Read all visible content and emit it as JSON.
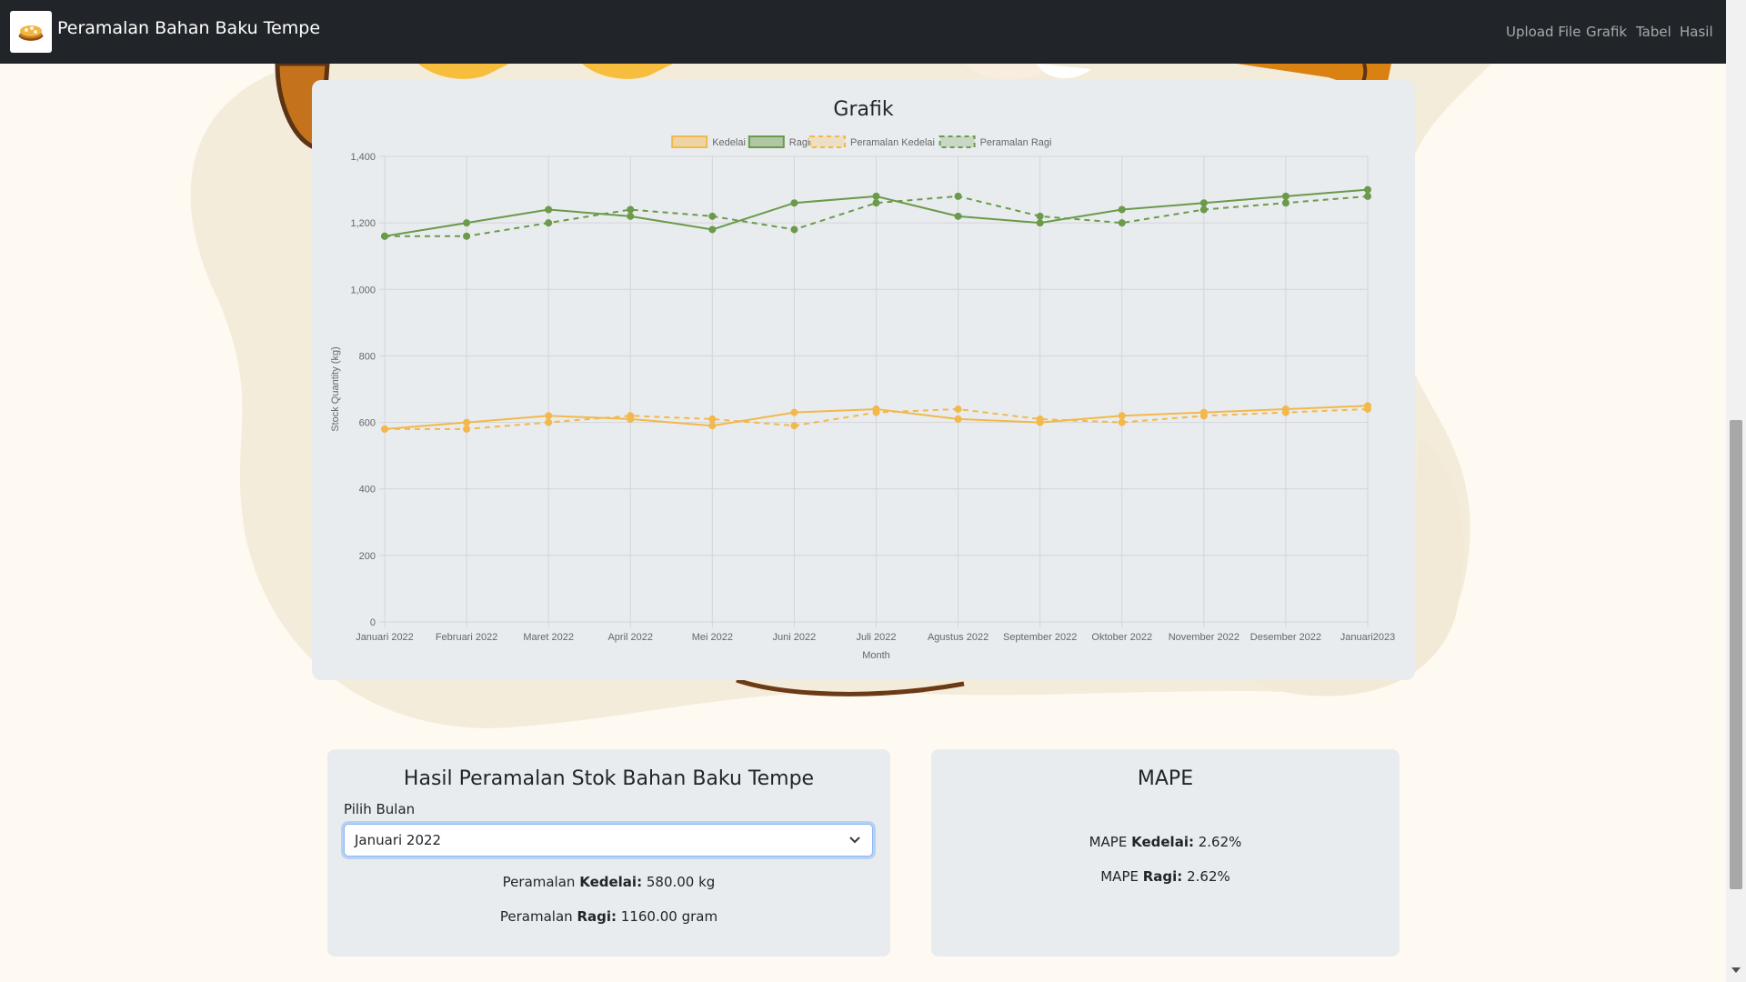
{
  "navbar": {
    "brand": "Peramalan Bahan Baku Tempe",
    "links": [
      "Upload File",
      "Grafik",
      "Tabel",
      "Hasil"
    ]
  },
  "colors": {
    "navbar_bg": "#212529",
    "page_bg": "#fefaf1",
    "card_bg": "#e9ecef",
    "kedelai": "#f2b84b",
    "ragi": "#6a9a4a",
    "blob": "#f4ecdb"
  },
  "chart_section": {
    "title": "Grafik"
  },
  "chart_data": {
    "type": "line",
    "categories": [
      "Januari 2022",
      "Februari 2022",
      "Maret 2022",
      "April 2022",
      "Mei 2022",
      "Juni 2022",
      "Juli 2022",
      "Agustus 2022",
      "September 2022",
      "Oktober 2022",
      "November 2022",
      "Desember 2022",
      "Januari2023"
    ],
    "series": [
      {
        "name": "Kedelai",
        "color": "#f2b84b",
        "dashed": false,
        "values": [
          580,
          600,
          620,
          610,
          590,
          630,
          640,
          610,
          600,
          620,
          630,
          640,
          650
        ]
      },
      {
        "name": "Ragi",
        "color": "#6a9a4a",
        "dashed": false,
        "values": [
          1160,
          1200,
          1240,
          1220,
          1180,
          1260,
          1280,
          1220,
          1200,
          1240,
          1260,
          1280,
          1300
        ]
      },
      {
        "name": "Peramalan Kedelai",
        "color": "#f2b84b",
        "dashed": true,
        "values": [
          580,
          580,
          600,
          620,
          610,
          590,
          630,
          640,
          610,
          600,
          620,
          630,
          640
        ]
      },
      {
        "name": "Peramalan Ragi",
        "color": "#6a9a4a",
        "dashed": true,
        "values": [
          1160,
          1160,
          1200,
          1240,
          1220,
          1180,
          1260,
          1280,
          1220,
          1200,
          1240,
          1260,
          1280
        ]
      }
    ],
    "xlabel": "Month",
    "ylabel": "Stock Quantity (kg)",
    "ylim": [
      0,
      1400
    ],
    "yticks": [
      "0",
      "200",
      "400",
      "600",
      "800",
      "1,000",
      "1,200",
      "1,400"
    ],
    "grid": true,
    "legend": "top-center"
  },
  "result_card": {
    "title": "Hasil Peramalan Stok Bahan Baku Tempe",
    "select_label": "Pilih Bulan",
    "selected_month": "Januari 2022",
    "kedelai_prefix": "Peramalan",
    "kedelai_label": "Kedelai:",
    "kedelai_value": "580.00 kg",
    "ragi_prefix": "Peramalan",
    "ragi_label": "Ragi:",
    "ragi_value": "1160.00 gram"
  },
  "mape_card": {
    "title": "MAPE",
    "kedelai_prefix": "MAPE",
    "kedelai_label": "Kedelai:",
    "kedelai_value": "2.62%",
    "ragi_prefix": "MAPE",
    "ragi_label": "Ragi:",
    "ragi_value": "2.62%"
  }
}
